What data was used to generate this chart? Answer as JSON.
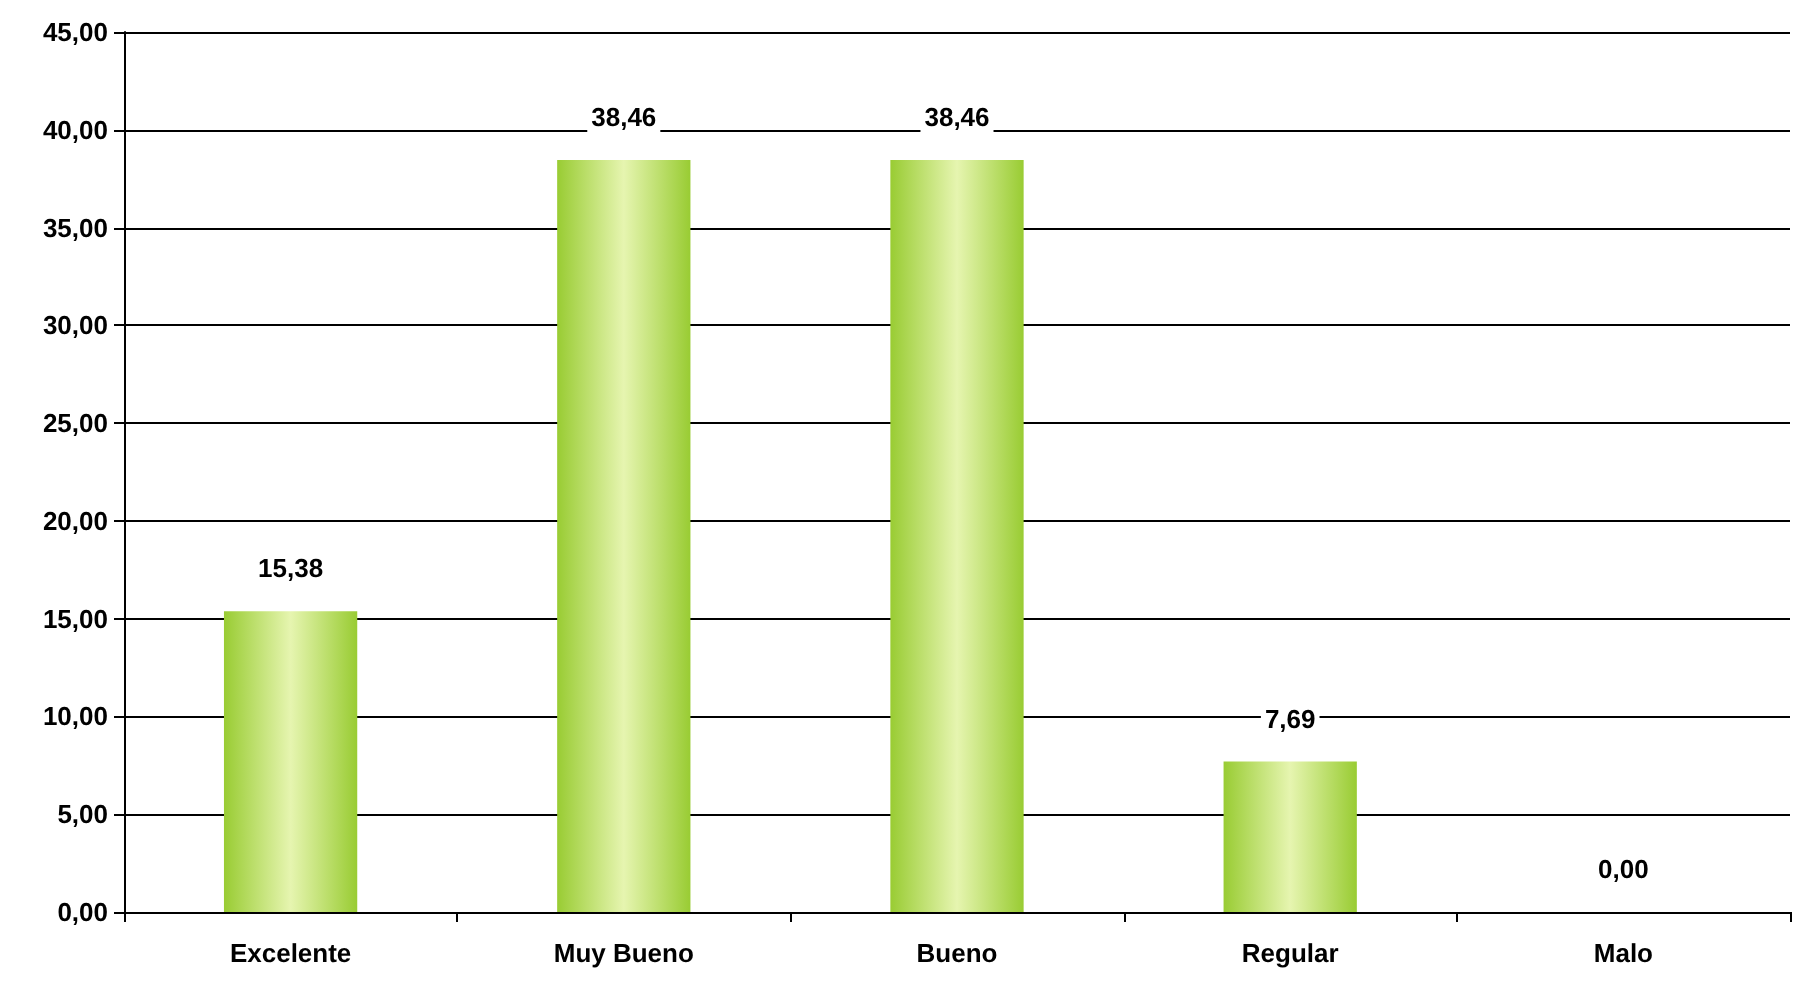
{
  "chart_data": {
    "type": "bar",
    "categories": [
      "Excelente",
      "Muy Bueno",
      "Bueno",
      "Regular",
      "Malo"
    ],
    "values": [
      15.38,
      38.46,
      38.46,
      7.69,
      0
    ],
    "value_labels": [
      "15,38",
      "38,46",
      "38,46",
      "7,69",
      "0,00"
    ],
    "color": "#99cc33",
    "ylim": [
      0,
      45
    ],
    "yticks": [
      {
        "value": 0,
        "label": "0,00"
      },
      {
        "value": 5,
        "label": "5,00"
      },
      {
        "value": 10,
        "label": "10,00"
      },
      {
        "value": 15,
        "label": "15,00"
      },
      {
        "value": 20,
        "label": "20,00"
      },
      {
        "value": 25,
        "label": "25,00"
      },
      {
        "value": 30,
        "label": "30,00"
      },
      {
        "value": 35,
        "label": "35,00"
      },
      {
        "value": 40,
        "label": "40,00"
      },
      {
        "value": 45,
        "label": "45,00"
      }
    ],
    "grid": "y"
  }
}
